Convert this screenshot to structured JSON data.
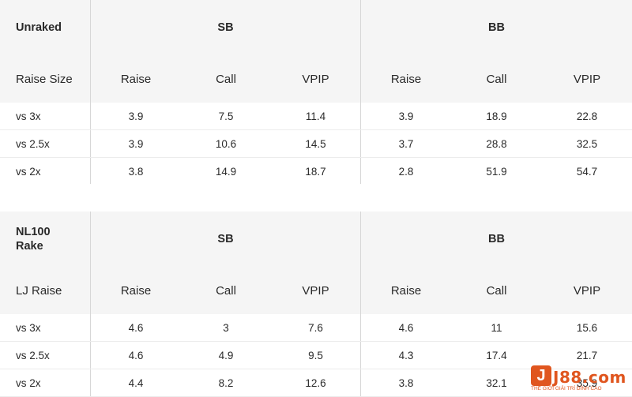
{
  "tables": [
    {
      "corner_label": "Unraked",
      "groups": [
        "SB",
        "BB"
      ],
      "sub_header_label": "Raise Size",
      "columns": [
        "Raise",
        "Call",
        "VPIP",
        "Raise",
        "Call",
        "VPIP"
      ],
      "rows": [
        {
          "label": "vs 3x",
          "values": [
            "3.9",
            "7.5",
            "11.4",
            "3.9",
            "18.9",
            "22.8"
          ]
        },
        {
          "label": "vs 2.5x",
          "values": [
            "3.9",
            "10.6",
            "14.5",
            "3.7",
            "28.8",
            "32.5"
          ]
        },
        {
          "label": "vs 2x",
          "values": [
            "3.8",
            "14.9",
            "18.7",
            "2.8",
            "51.9",
            "54.7"
          ]
        }
      ]
    },
    {
      "corner_label": "NL100 Rake",
      "groups": [
        "SB",
        "BB"
      ],
      "sub_header_label": "LJ Raise",
      "columns": [
        "Raise",
        "Call",
        "VPIP",
        "Raise",
        "Call",
        "VPIP"
      ],
      "rows": [
        {
          "label": "vs 3x",
          "values": [
            "4.6",
            "3",
            "7.6",
            "4.6",
            "11",
            "15.6"
          ]
        },
        {
          "label": "vs 2.5x",
          "values": [
            "4.6",
            "4.9",
            "9.5",
            "4.3",
            "17.4",
            "21.7"
          ]
        },
        {
          "label": "vs 2x",
          "values": [
            "4.4",
            "8.2",
            "12.6",
            "3.8",
            "32.1",
            "35.9"
          ]
        }
      ]
    }
  ],
  "watermark": {
    "logo_letter": "J",
    "brand": "J88.com",
    "tagline": "THẾ GIỚI GIẢI TRÍ ĐỈNH CAO"
  },
  "colors": {
    "header_bg": "#f5f5f5",
    "watermark": "#e0561f"
  }
}
